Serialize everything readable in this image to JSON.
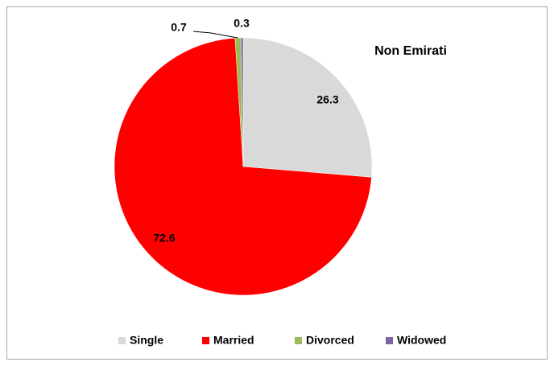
{
  "chart_data": {
    "type": "pie",
    "title": "Non Emirati",
    "categories": [
      "Single",
      "Married",
      "Divorced",
      "Widowed"
    ],
    "values": [
      26.3,
      72.6,
      0.7,
      0.3
    ],
    "colors": [
      "#d9d9d9",
      "#ff0000",
      "#9bbb59",
      "#8064a2"
    ],
    "legend": "bottom"
  }
}
